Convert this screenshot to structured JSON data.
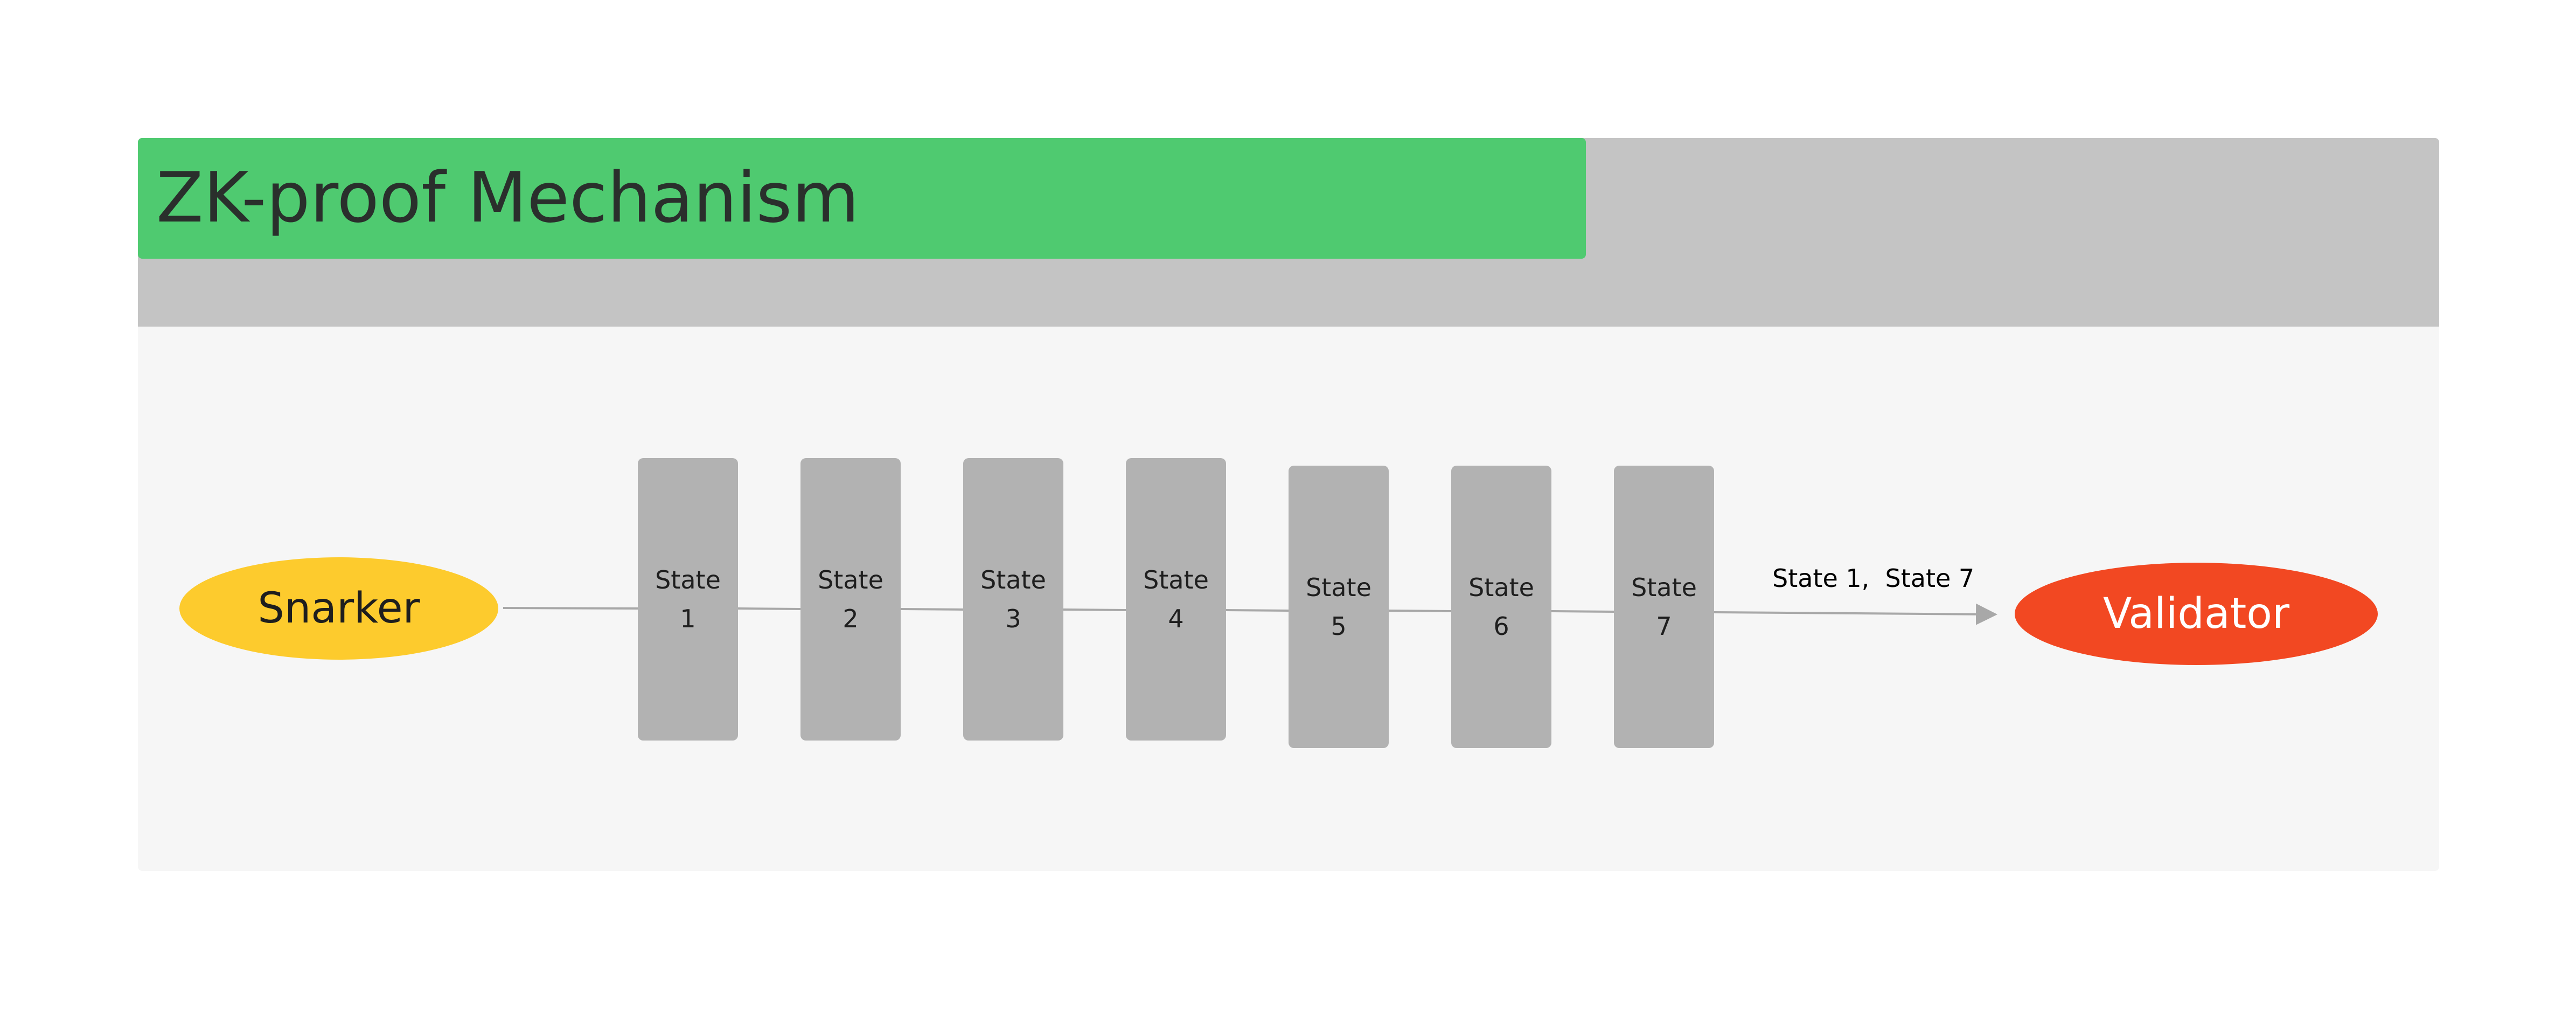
{
  "diagram": {
    "title": "ZK-proof Mechanism",
    "source_node": "Snarker",
    "target_node": "Validator",
    "states": [
      {
        "word": "State",
        "number": "1"
      },
      {
        "word": "State",
        "number": "2"
      },
      {
        "word": "State",
        "number": "3"
      },
      {
        "word": "State",
        "number": "4"
      },
      {
        "word": "State",
        "number": "5"
      },
      {
        "word": "State",
        "number": "6"
      },
      {
        "word": "State",
        "number": "7"
      }
    ],
    "arrow_label": "State 1,  State 7"
  },
  "colors": {
    "title_bar": "#4fca70",
    "header_band": "#c4c4c4",
    "canvas": "#f6f6f6",
    "snarker": "#fdcb2d",
    "validator": "#f24822",
    "state_box": "#b2b2b2",
    "connector": "#a8a8a8"
  }
}
